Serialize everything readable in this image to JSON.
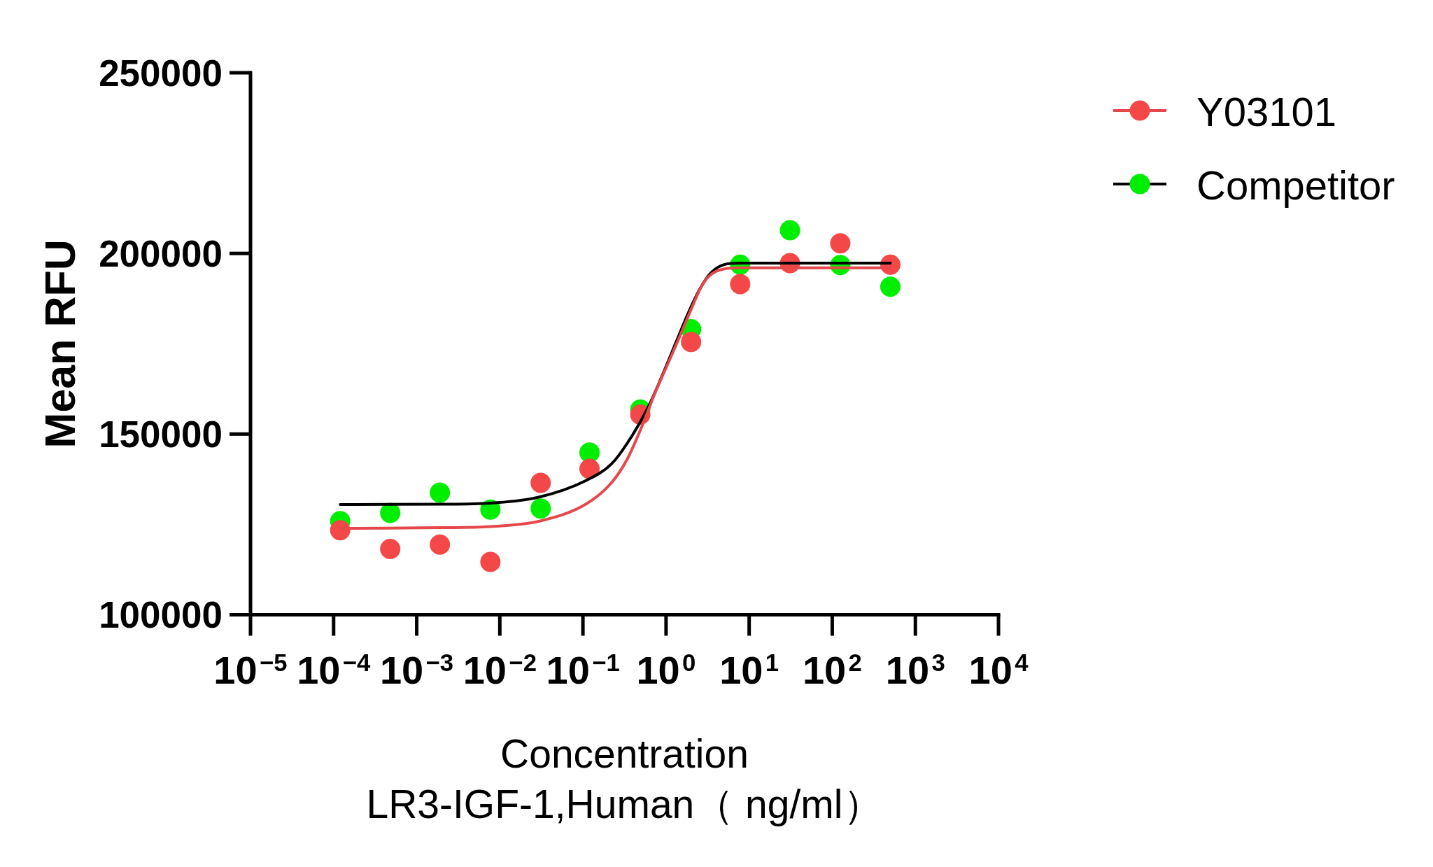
{
  "chart_data": {
    "type": "scatter",
    "xlabel": "Concentration\nLR3-IGF-1,Human（ ng/ml）",
    "ylabel": "Mean RFU",
    "log": "x",
    "legend": "top right",
    "marker": "circle",
    "xlim": [
      1e-05,
      10000
    ],
    "xticks": [
      {
        "value": 1e-05,
        "label": "10$^{−5}$"
      },
      {
        "value": 0.0001,
        "label": "10$^{−4}$"
      },
      {
        "value": 0.001,
        "label": "10$^{−3}$"
      },
      {
        "value": 0.01,
        "label": "10$^{−2}$"
      },
      {
        "value": 0.1,
        "label": "10$^{−1}$"
      },
      {
        "value": 1,
        "label": "10$^{0}$"
      },
      {
        "value": 10,
        "label": "10$^{1}$"
      },
      {
        "value": 100,
        "label": "10$^{2}$"
      },
      {
        "value": 1000,
        "label": "10$^{3}$"
      },
      {
        "value": 10000,
        "label": "10$^{4}$"
      }
    ],
    "ylim": [
      100000,
      250000
    ],
    "yticks": [
      100000,
      150000,
      200000,
      250000
    ],
    "x": [
      0.00012,
      0.00048,
      0.0019,
      0.0077,
      0.031,
      0.12,
      0.49,
      2.0,
      7.8,
      31,
      125,
      500
    ],
    "series": [
      {
        "name": "Y03101",
        "color": "#f44848",
        "values": [
          123400,
          118200,
          119400,
          114600,
          136500,
          140400,
          155400,
          175500,
          191500,
          197300,
          202800,
          196900
        ]
      },
      {
        "name": "Competitor",
        "color": "#00ee00",
        "values": [
          125900,
          128200,
          133800,
          129100,
          129400,
          144900,
          156800,
          179000,
          196900,
          206400,
          196800,
          190800
        ]
      },
      {
        "type": "line",
        "marker": "none",
        "color": "#e5484b",
        "x": [
          0.00012,
          0.0019,
          0.0077,
          0.03,
          0.11,
          0.22,
          0.34,
          0.51,
          0.74,
          1.03,
          1.43,
          2.03,
          2.68,
          3.53,
          5.0,
          7.6,
          500
        ],
        "values": [
          123900,
          124100,
          124400,
          125900,
          130700,
          136500,
          143000,
          152000,
          161500,
          169000,
          176500,
          184800,
          191000,
          194300,
          195700,
          196000,
          196000
        ]
      },
      {
        "type": "line",
        "marker": "none",
        "color": "#000000",
        "x": [
          0.00012,
          0.0019,
          0.0077,
          0.03,
          0.11,
          0.22,
          0.34,
          0.62,
          0.95,
          1.34,
          1.9,
          2.68,
          3.53,
          5.0,
          7.6,
          500
        ],
        "values": [
          130500,
          130600,
          130900,
          132600,
          137200,
          141700,
          147400,
          157800,
          167500,
          175800,
          184100,
          191000,
          194800,
          196900,
          197300,
          197300
        ]
      }
    ]
  }
}
